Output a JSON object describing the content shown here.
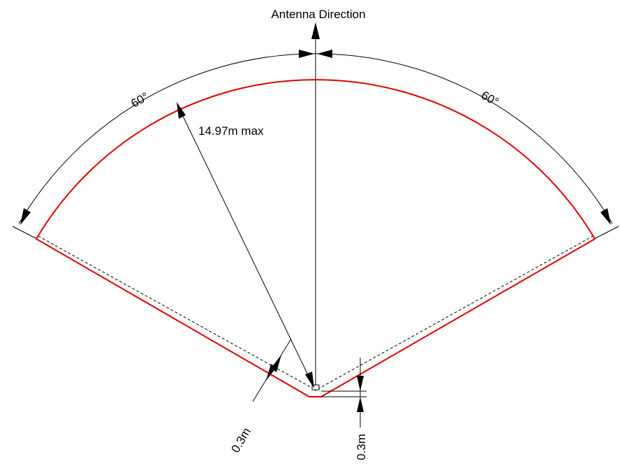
{
  "labels": {
    "antenna_direction": "Antenna Direction",
    "left_angle": "60°",
    "right_angle": "60°",
    "radius": "14.97m max",
    "offset_side": "0.3m",
    "offset_vertical": "0.3m"
  },
  "colors": {
    "zone_outline": "#e00000",
    "dimension_lines": "#000000",
    "background": "#ffffff"
  }
}
